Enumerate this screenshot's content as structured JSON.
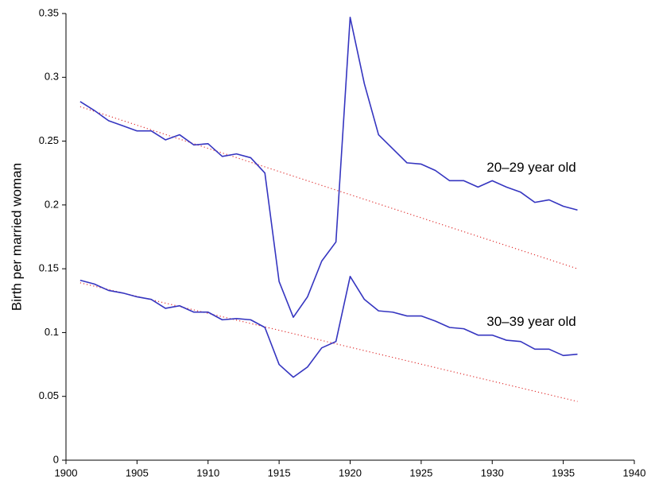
{
  "chart_data": {
    "type": "line",
    "ylabel": "Birth per married woman",
    "x": [
      1901,
      1902,
      1903,
      1904,
      1905,
      1906,
      1907,
      1908,
      1909,
      1910,
      1911,
      1912,
      1913,
      1914,
      1915,
      1916,
      1917,
      1918,
      1919,
      1920,
      1921,
      1922,
      1923,
      1924,
      1925,
      1926,
      1927,
      1928,
      1929,
      1930,
      1931,
      1932,
      1933,
      1934,
      1935,
      1936
    ],
    "series": [
      {
        "name": "20–29 year old",
        "color": "#3535c0",
        "values": [
          0.281,
          0.274,
          0.266,
          0.262,
          0.258,
          0.258,
          0.251,
          0.255,
          0.247,
          0.248,
          0.238,
          0.24,
          0.237,
          0.225,
          0.14,
          0.112,
          0.128,
          0.156,
          0.171,
          0.347,
          0.295,
          0.255,
          0.244,
          0.233,
          0.232,
          0.227,
          0.219,
          0.219,
          0.214,
          0.219,
          0.214,
          0.21,
          0.202,
          0.204,
          0.199,
          0.196
        ],
        "trend": {
          "x": [
            1901,
            1936
          ],
          "values": [
            0.277,
            0.15
          ],
          "color": "#e03030"
        }
      },
      {
        "name": "30–39 year old",
        "color": "#3535c0",
        "values": [
          0.141,
          0.138,
          0.133,
          0.131,
          0.128,
          0.126,
          0.119,
          0.121,
          0.116,
          0.116,
          0.11,
          0.111,
          0.11,
          0.104,
          0.075,
          0.065,
          0.073,
          0.088,
          0.093,
          0.144,
          0.126,
          0.117,
          0.116,
          0.113,
          0.113,
          0.109,
          0.104,
          0.103,
          0.098,
          0.098,
          0.094,
          0.093,
          0.087,
          0.087,
          0.082,
          0.083
        ],
        "trend": {
          "x": [
            1901,
            1936
          ],
          "values": [
            0.139,
            0.046
          ],
          "color": "#e03030"
        }
      }
    ],
    "xlim": [
      1900,
      1940
    ],
    "xticks": [
      1900,
      1905,
      1910,
      1915,
      1920,
      1925,
      1930,
      1935,
      1940
    ],
    "ylim": [
      0,
      0.35
    ],
    "yticks": [
      0,
      0.05,
      0.1,
      0.15,
      0.2,
      0.25,
      0.3,
      0.35
    ],
    "grid": false
  }
}
